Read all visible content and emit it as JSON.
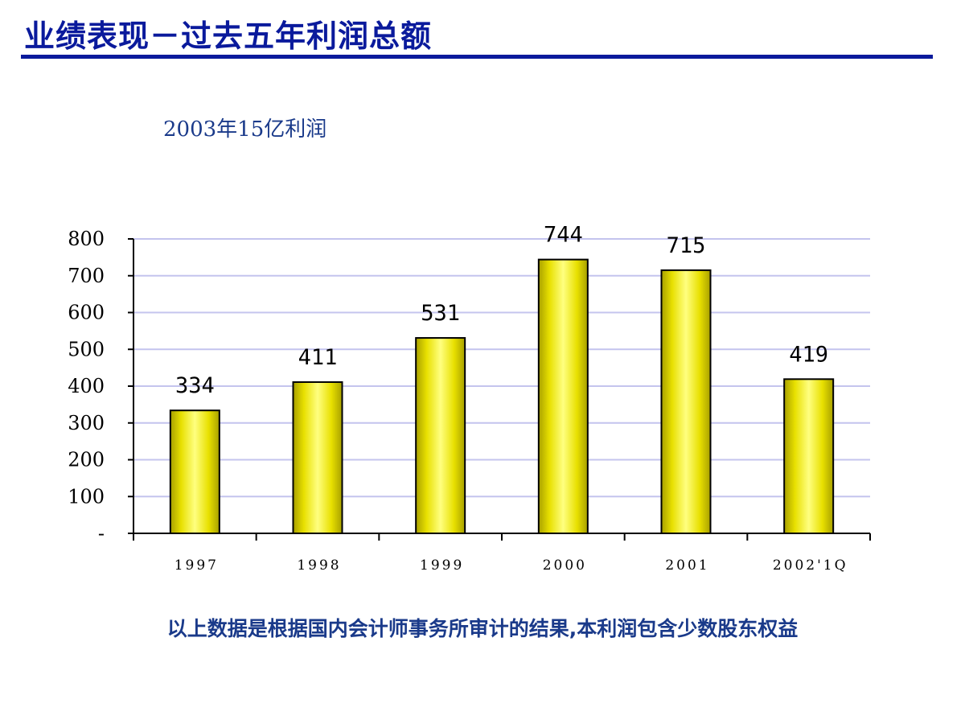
{
  "header": {
    "title": "业绩表现－过去五年利润总额"
  },
  "annotation": "2003年15亿利润",
  "footnote": "以上数据是根据国内会计师事务所审计的结果,本利润包含少数股东权益",
  "colors": {
    "title": "#0a1a9c",
    "subtitle": "#1a3a8a",
    "bar_fill": "#e8e000",
    "bar_highlight": "#ffff80",
    "gridline": "#c4c4ee"
  },
  "chart_data": {
    "type": "bar",
    "categories": [
      "1997",
      "1998",
      "1999",
      "2000",
      "2001",
      "2002'1Q"
    ],
    "values": [
      334,
      411,
      531,
      744,
      715,
      419
    ],
    "data_labels": [
      "334",
      "411",
      "531",
      "744",
      "715",
      "419"
    ],
    "title": "",
    "xlabel": "",
    "ylabel": "",
    "ylim": [
      0,
      800
    ],
    "yticks": [
      0,
      100,
      200,
      300,
      400,
      500,
      600,
      700,
      800
    ],
    "ytick_labels": [
      "-",
      "100",
      "200",
      "300",
      "400",
      "500",
      "600",
      "700",
      "800"
    ],
    "grid": true,
    "legend": "none"
  }
}
